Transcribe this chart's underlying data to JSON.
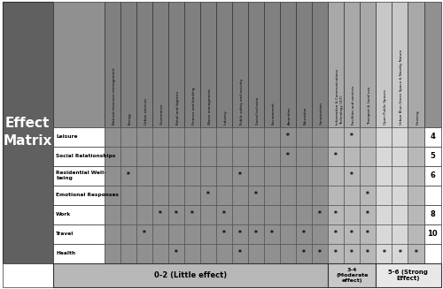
{
  "title": "Effect\nMatrix",
  "col_headers": [
    "Natural resources management",
    "Energy",
    "Urban services",
    "Governance",
    "Retail and logistics",
    "Finance and banking",
    "Waste management",
    "Industry",
    "Public safety and security",
    "Social Inclusion",
    "Environment",
    "Amenities",
    "Education",
    "Construction",
    "Information & Communications\nTechnology (ICT)",
    "Facilities and services",
    "Transport & Land use",
    "Open Public Spaces",
    "Urban Blue-Green Space & Nearby Nature",
    "Housing"
  ],
  "row_headers": [
    "Leisure",
    "Social Relationships",
    "Residential Well-\nbeing",
    "Emotional Responses",
    "Work",
    "Travel",
    "Health"
  ],
  "row_scores": [
    "4",
    "5",
    "6",
    "",
    "8",
    "10",
    ""
  ],
  "marks": {
    "0": [
      11,
      15
    ],
    "1": [
      11,
      14
    ],
    "2": [
      1,
      8,
      15
    ],
    "3": [
      6,
      9,
      16
    ],
    "4": [
      3,
      4,
      5,
      7,
      13,
      14,
      16
    ],
    "5": [
      2,
      7,
      8,
      9,
      10,
      12,
      14,
      15,
      16
    ],
    "6": [
      4,
      8,
      12,
      13,
      14,
      15,
      16,
      17,
      18,
      19
    ]
  },
  "header_bg": "#686868",
  "header_col_bg_dark": "#888888",
  "header_col_bg_medium": "#b0b0b0",
  "header_col_bg_light": "#d0d0d0",
  "data_bg_dark": "#888888",
  "data_bg_medium": "#b0b0b0",
  "data_bg_light": "#d0d0d0",
  "row_label_bg": "#ffffff",
  "score_bg": "#ffffff",
  "title_bg": "#606060",
  "title_color": "#ffffff",
  "legend_0_2_bg": "#b8b8b8",
  "legend_3_4_bg": "#c8c8c8",
  "legend_5_6_bg": "#e8e8e8",
  "legend_0_2_text": "0-2 (Little effect)",
  "legend_3_4_text": "3-4\n(Moderate\neffect)",
  "legend_5_6_text": "5-6 (Strong\nEffect)"
}
